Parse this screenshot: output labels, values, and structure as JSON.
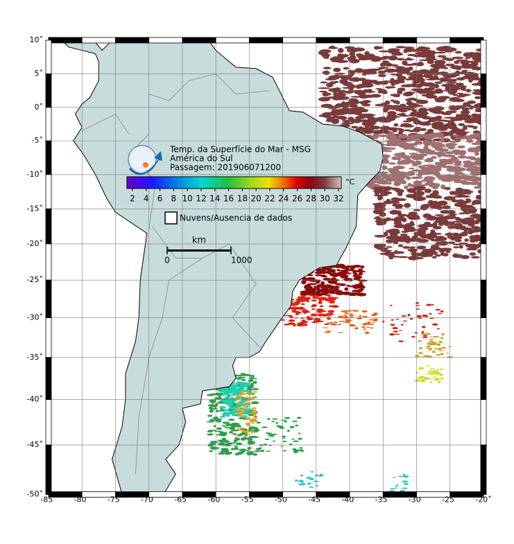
{
  "map": {
    "title": "Temp. da Superfície do Mar - MSG",
    "region": "América do Sul",
    "pass": "Passagem: 201906071200",
    "logo": "INPE",
    "colorbar": {
      "unit": "°C",
      "range": [
        1.2,
        32.4
      ],
      "ticks": [
        2,
        4,
        6,
        8,
        10,
        12,
        14,
        16,
        18,
        20,
        22,
        24,
        26,
        28,
        30,
        32
      ]
    },
    "legend": "Nuvens/Ausencia de dados",
    "scale": {
      "unit": "km",
      "ticks": [
        0,
        1000
      ]
    },
    "lon_ticks": [
      {
        "value": -85,
        "label": "-85˚"
      },
      {
        "value": -80,
        "label": "-80˚"
      },
      {
        "value": -75,
        "label": "-75˚"
      },
      {
        "value": -70,
        "label": "-70˚"
      },
      {
        "value": -65,
        "label": "-65˚"
      },
      {
        "value": -60,
        "label": "-60˚"
      },
      {
        "value": -55,
        "label": "-55˚"
      },
      {
        "value": -50,
        "label": "-50˚"
      },
      {
        "value": -45,
        "label": "-45˚"
      },
      {
        "value": -40,
        "label": "-40˚"
      },
      {
        "value": -35,
        "label": "-35˚"
      },
      {
        "value": -30,
        "label": "-30˚"
      },
      {
        "value": -25,
        "label": "-25˚"
      },
      {
        "value": -20,
        "label": "-20˚"
      }
    ],
    "lat_ticks": [
      {
        "value": 10,
        "label": "10˚"
      },
      {
        "value": 5,
        "label": "5˚"
      },
      {
        "value": 0,
        "label": "0˚"
      },
      {
        "value": -5,
        "label": "-5˚"
      },
      {
        "value": -10,
        "label": "-10˚"
      },
      {
        "value": -15,
        "label": "-15˚"
      },
      {
        "value": -20,
        "label": "-20˚"
      },
      {
        "value": -25,
        "label": "-25˚"
      },
      {
        "value": -30,
        "label": "-30˚"
      },
      {
        "value": -35,
        "label": "-35˚"
      },
      {
        "value": -40,
        "label": "-40˚"
      },
      {
        "value": -45,
        "label": "-45˚"
      },
      {
        "value": -50,
        "label": "-50˚"
      }
    ]
  }
}
